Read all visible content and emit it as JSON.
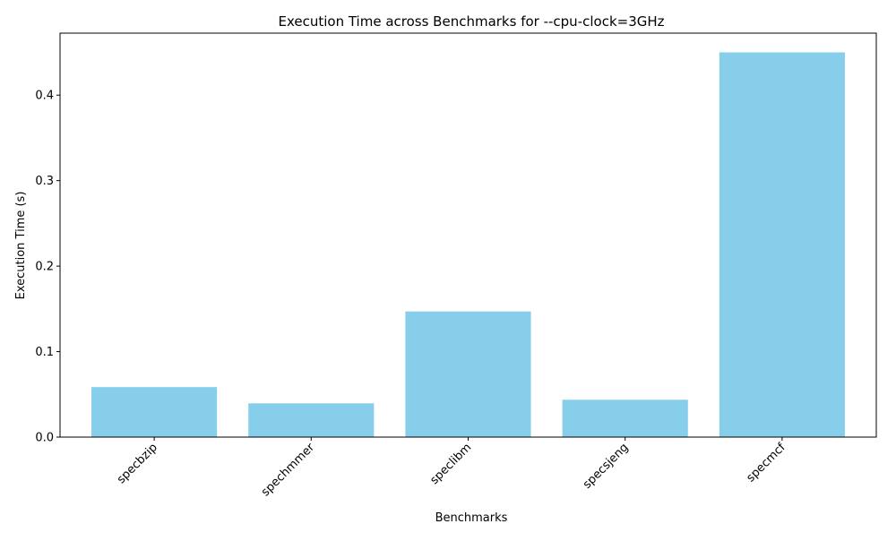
{
  "chart_data": {
    "type": "bar",
    "title": "Execution Time across Benchmarks for --cpu-clock=3GHz",
    "xlabel": "Benchmarks",
    "ylabel": "Execution Time (s)",
    "categories": [
      "specbzip",
      "spechmmer",
      "speclibm",
      "specsjeng",
      "specmcf"
    ],
    "values": [
      0.0585,
      0.0395,
      0.147,
      0.0437,
      0.45
    ],
    "ylim": [
      0,
      0.4725
    ],
    "yticks": [
      0.0,
      0.1,
      0.2,
      0.3,
      0.4
    ],
    "ytick_labels": [
      "0.0",
      "0.1",
      "0.2",
      "0.3",
      "0.4"
    ],
    "xtick_rotation": 45,
    "grid": false,
    "legend": "none",
    "bar_color": "#87ceeb"
  }
}
